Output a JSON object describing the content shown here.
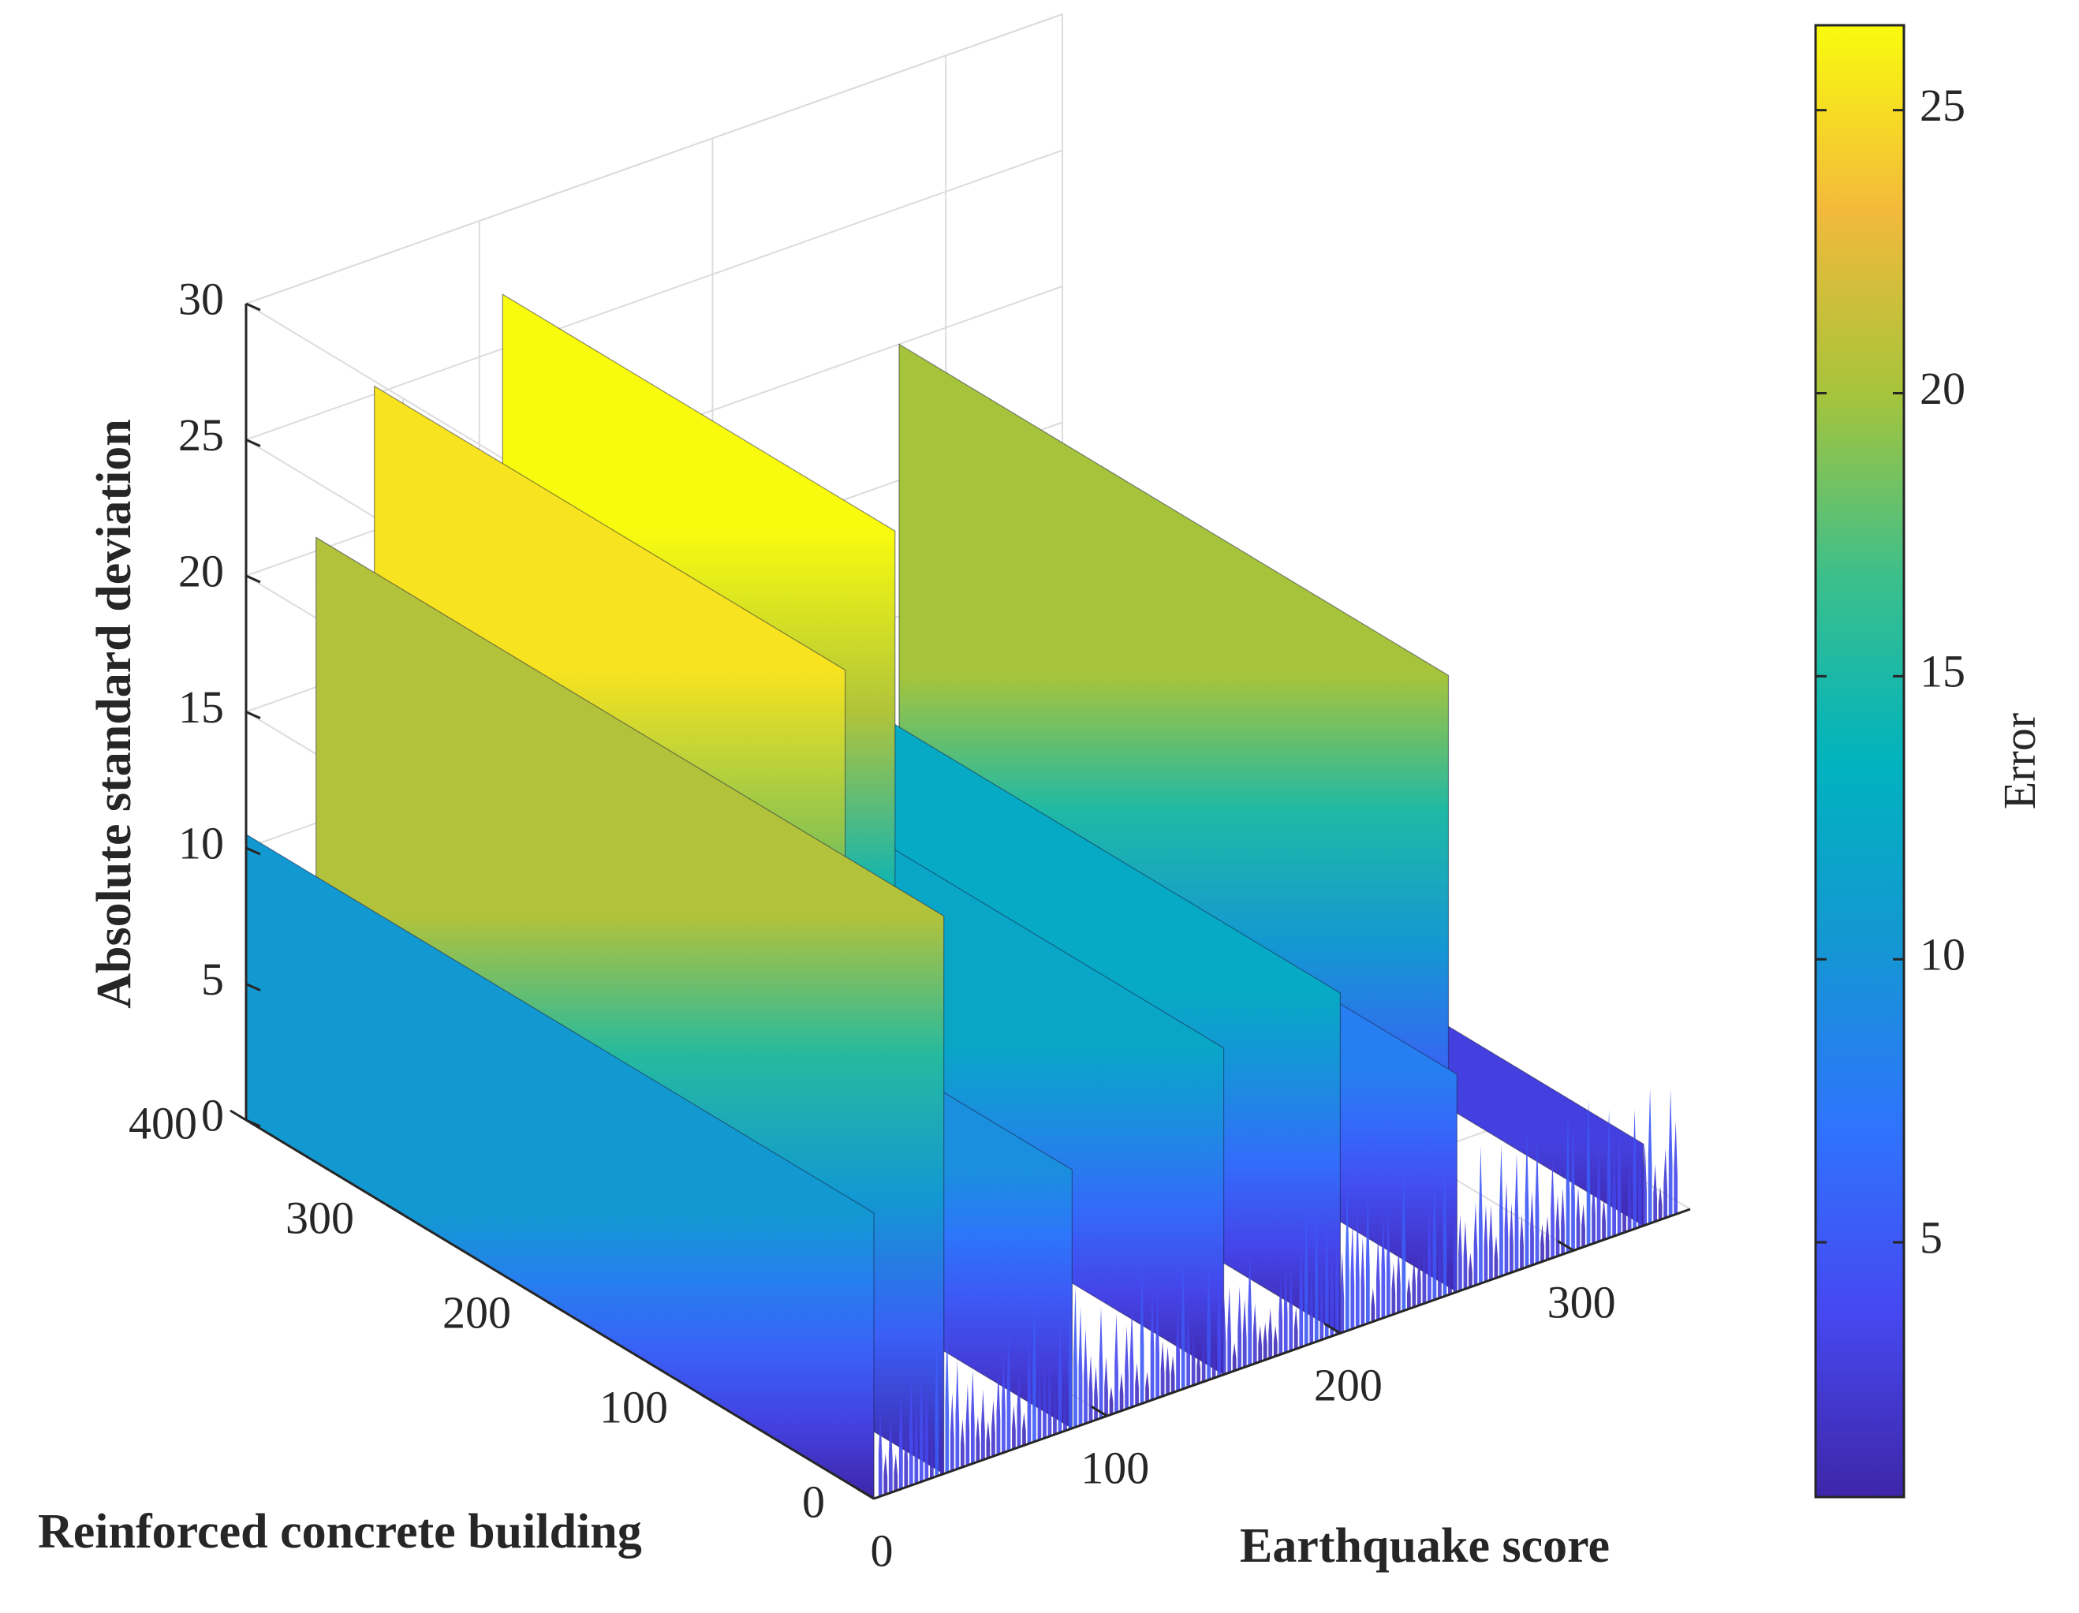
{
  "chart_data": {
    "type": "surface-3d",
    "colormap": "parula",
    "grid": true,
    "xlabel": "Earthquake score",
    "ylabel": "Reinforced concrete building",
    "zlabel": "Absolute standard deviation",
    "xlim": [
      0,
      350
    ],
    "ylim": [
      0,
      400
    ],
    "zlim": [
      0,
      30
    ],
    "x_ticks": [
      "0",
      "100",
      "200",
      "300"
    ],
    "y_ticks": [
      "0",
      "100",
      "200",
      "300",
      "400"
    ],
    "z_ticks": [
      "0",
      "5",
      "10",
      "15",
      "20",
      "25",
      "30"
    ],
    "colorbar": {
      "label": "Error",
      "limits": [
        0.5,
        26.5
      ],
      "ticks": [
        "5",
        "10",
        "15",
        "20",
        "25"
      ],
      "position": "right"
    },
    "ridges": [
      {
        "x": 0,
        "y_range": [
          0,
          400
        ],
        "z_max": 10.5
      },
      {
        "x": 30,
        "y_range": [
          0,
          400
        ],
        "z_max": 20.5
      },
      {
        "x": 55,
        "y_range": [
          100,
          400
        ],
        "z_max": 25.3
      },
      {
        "x": 85,
        "y_range": [
          0,
          400
        ],
        "z_max": 9.5
      },
      {
        "x": 110,
        "y_range": [
          150,
          400
        ],
        "z_max": 27
      },
      {
        "x": 150,
        "y_range": [
          0,
          400
        ],
        "z_max": 12
      },
      {
        "x": 200,
        "y_range": [
          0,
          400
        ],
        "z_max": 12.5
      },
      {
        "x": 250,
        "y_range": [
          0,
          400
        ],
        "z_max": 8
      },
      {
        "x": 280,
        "y_range": [
          50,
          400
        ],
        "z_max": 20
      },
      {
        "x": 330,
        "y_range": [
          0,
          400
        ],
        "z_max": 3
      }
    ]
  }
}
